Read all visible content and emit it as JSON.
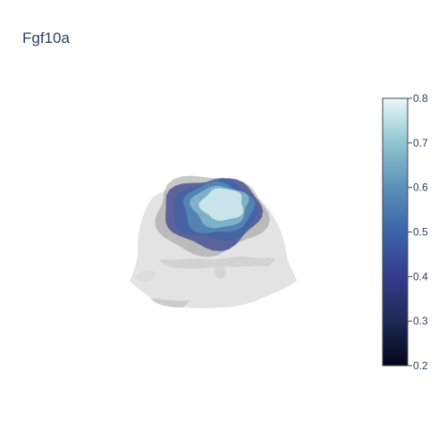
{
  "chart_data": {
    "type": "3d-mesh",
    "title": "Fgf10a",
    "colorbar": {
      "colorscale": "ice",
      "range": [
        0.2,
        0.8
      ],
      "ticks": [
        "0.2",
        "0.3",
        "0.4",
        "0.5",
        "0.6",
        "0.7",
        "0.8"
      ],
      "colors": [
        "#03051a",
        "#1d2a55",
        "#333d8c",
        "#3d64a8",
        "#5892b8",
        "#8fc4d0",
        "#eaf8fa"
      ]
    },
    "expression_levels": [
      0.2,
      0.3,
      0.4,
      0.5,
      0.6,
      0.7
    ],
    "context_color": "#d8d8d8"
  }
}
